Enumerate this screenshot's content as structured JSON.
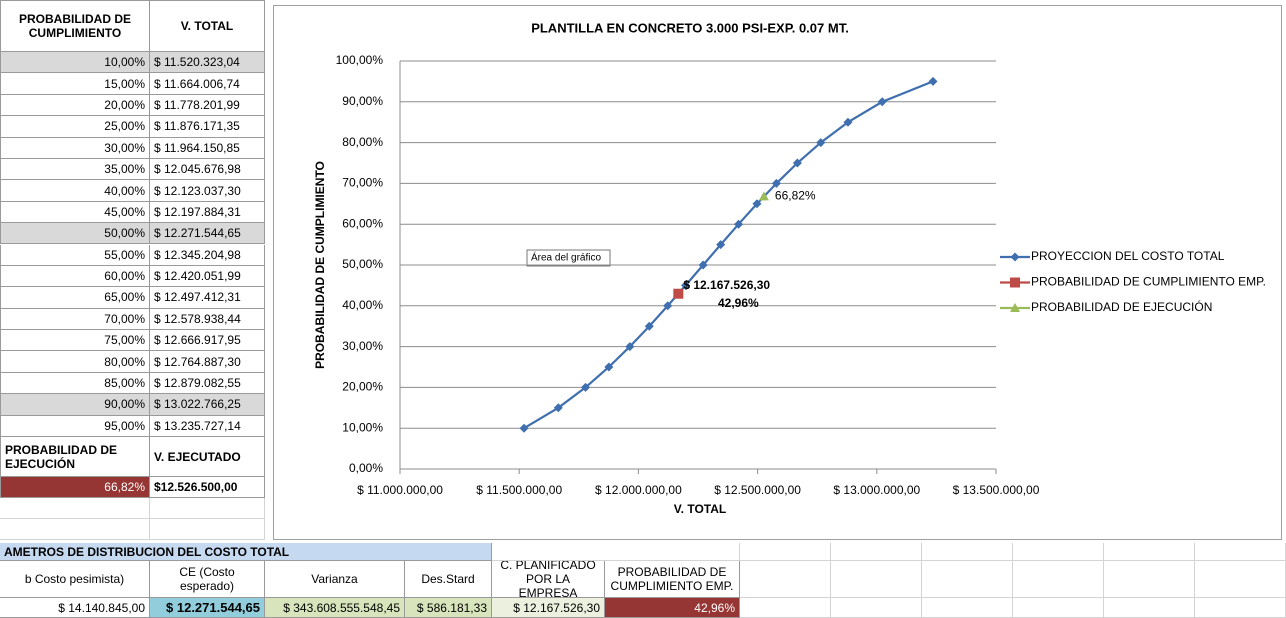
{
  "table": {
    "headers": [
      "PROBABILIDAD DE CUMPLIMIENTO",
      "V. TOTAL"
    ],
    "rows": [
      [
        "10,00%",
        "$ 11.520.323,04"
      ],
      [
        "15,00%",
        "$ 11.664.006,74"
      ],
      [
        "20,00%",
        "$ 11.778.201,99"
      ],
      [
        "25,00%",
        "$ 11.876.171,35"
      ],
      [
        "30,00%",
        "$ 11.964.150,85"
      ],
      [
        "35,00%",
        "$ 12.045.676,98"
      ],
      [
        "40,00%",
        "$ 12.123.037,30"
      ],
      [
        "45,00%",
        "$ 12.197.884,31"
      ],
      [
        "50,00%",
        "$ 12.271.544,65"
      ],
      [
        "55,00%",
        "$ 12.345.204,98"
      ],
      [
        "60,00%",
        "$ 12.420.051,99"
      ],
      [
        "65,00%",
        "$ 12.497.412,31"
      ],
      [
        "70,00%",
        "$ 12.578.938,44"
      ],
      [
        "75,00%",
        "$ 12.666.917,95"
      ],
      [
        "80,00%",
        "$ 12.764.887,30"
      ],
      [
        "85,00%",
        "$ 12.879.082,55"
      ],
      [
        "90,00%",
        "$ 13.022.766,25"
      ],
      [
        "95,00%",
        "$ 13.235.727,14"
      ]
    ],
    "execution_headers": [
      "PROBABILIDAD DE EJECUCIÓN",
      "V. EJECUTADO"
    ],
    "execution_row": [
      "66,82%",
      "$12.526.500,00"
    ]
  },
  "params": {
    "title": "AMETROS DE DISTRIBUCION DEL COSTO TOTAL",
    "headers": [
      "b Costo pesimista)",
      "CE (Costo esperado)",
      "Varianza",
      "Des.Stard",
      "C. PLANIFICADO POR LA EMPRESA",
      "PROBABILIDAD DE CUMPLIMIENTO EMP."
    ],
    "values": [
      "$ 14.140.845,00",
      "$ 12.271.544,65",
      "$ 343.608.555.548,45",
      "$ 586.181,33",
      "$ 12.167.526,30",
      "42,96%"
    ]
  },
  "chart_data": {
    "type": "line",
    "title": "PLANTILLA  EN CONCRETO 3.000 PSI-EXP.  0.07 MT.",
    "x_label": "V. TOTAL",
    "y_label": "PROBABILIDAD DE CUMPLIMIENTO",
    "tooltip": "Área del gráfico",
    "xlim": [
      11000000,
      13500000
    ],
    "xticks": [
      {
        "value": 11000000,
        "label": "$ 11.000.000,00"
      },
      {
        "value": 11500000,
        "label": "$ 11.500.000,00"
      },
      {
        "value": 12000000,
        "label": "$ 12.000.000,00"
      },
      {
        "value": 12500000,
        "label": "$ 12.500.000,00"
      },
      {
        "value": 13000000,
        "label": "$ 13.000.000,00"
      },
      {
        "value": 13500000,
        "label": "$ 13.500.000,00"
      }
    ],
    "ylim": [
      0,
      100
    ],
    "yticks": [
      {
        "value": 0,
        "label": "0,00%"
      },
      {
        "value": 10,
        "label": "10,00%"
      },
      {
        "value": 20,
        "label": "20,00%"
      },
      {
        "value": 30,
        "label": "30,00%"
      },
      {
        "value": 40,
        "label": "40,00%"
      },
      {
        "value": 50,
        "label": "50,00%"
      },
      {
        "value": 60,
        "label": "60,00%"
      },
      {
        "value": 70,
        "label": "70,00%"
      },
      {
        "value": 80,
        "label": "80,00%"
      },
      {
        "value": 90,
        "label": "90,00%"
      },
      {
        "value": 100,
        "label": "100,00%"
      }
    ],
    "grid": true,
    "legend": "right",
    "series": [
      {
        "name": "PROYECCION DEL COSTO TOTAL",
        "color": "#3f6fae",
        "marker": "diamond",
        "x": [
          11520323.04,
          11664006.74,
          11778201.99,
          11876171.35,
          11964150.85,
          12045676.98,
          12123037.3,
          12197884.31,
          12271544.65,
          12345204.98,
          12420051.99,
          12497412.31,
          12578938.44,
          12666917.95,
          12764887.3,
          12879082.55,
          13022766.25,
          13235727.14
        ],
        "values": [
          10,
          15,
          20,
          25,
          30,
          35,
          40,
          45,
          50,
          55,
          60,
          65,
          70,
          75,
          80,
          85,
          90,
          95
        ]
      },
      {
        "name": "PROBABILIDAD DE CUMPLIMIENTO EMP.",
        "color": "#be4b48",
        "marker": "square",
        "x": [
          12167526.3
        ],
        "values": [
          42.96
        ],
        "x_labels": [
          "$ 12.167.526,30"
        ],
        "value_labels": [
          "42,96%"
        ]
      },
      {
        "name": "PROBABILIDAD DE EJECUCIÓN",
        "color": "#9bbb59",
        "marker": "triangle",
        "x": [
          12526500.0
        ],
        "values": [
          66.82
        ],
        "value_labels": [
          "66,82%"
        ]
      }
    ]
  }
}
